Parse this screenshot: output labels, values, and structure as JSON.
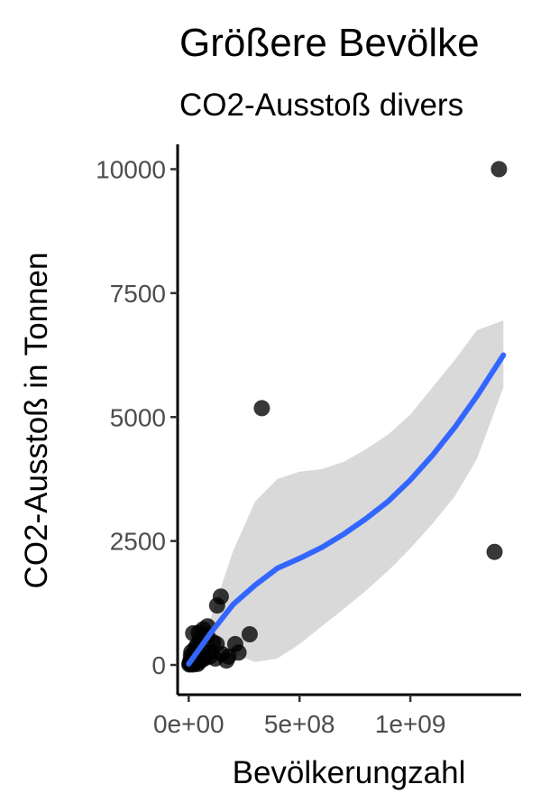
{
  "chart_data": {
    "type": "scatter",
    "title": "Größere Bevölke",
    "subtitle": "CO2-Ausstoß divers",
    "xlabel": "Bevölkerungzahl",
    "ylabel": "CO2-Ausstoß in Tonnen",
    "xlim": [
      -50000000.0,
      1500000000.0
    ],
    "ylim": [
      -600,
      10500
    ],
    "x_ticks": [
      {
        "value": 0,
        "label": "0e+00"
      },
      {
        "value": 500000000,
        "label": "5e+08"
      },
      {
        "value": 1000000000,
        "label": "1e+09"
      }
    ],
    "y_ticks": [
      {
        "value": 0,
        "label": "0"
      },
      {
        "value": 2500,
        "label": "2500"
      },
      {
        "value": 5000,
        "label": "5000"
      },
      {
        "value": 7500,
        "label": "7500"
      },
      {
        "value": 10000,
        "label": "10000"
      }
    ],
    "points": [
      {
        "x": 1400000000,
        "y": 10000
      },
      {
        "x": 1380000000,
        "y": 2280
      },
      {
        "x": 330000000,
        "y": 5180
      },
      {
        "x": 145000000,
        "y": 1380
      },
      {
        "x": 128000000,
        "y": 1200
      },
      {
        "x": 275000000,
        "y": 620
      },
      {
        "x": 210000000,
        "y": 420
      },
      {
        "x": 225000000,
        "y": 250
      },
      {
        "x": 85000000,
        "y": 780
      },
      {
        "x": 65000000,
        "y": 720
      },
      {
        "x": 45000000,
        "y": 650
      },
      {
        "x": 20000000,
        "y": 640
      },
      {
        "x": 83000000,
        "y": 600
      },
      {
        "x": 110000000,
        "y": 460
      },
      {
        "x": 126000000,
        "y": 420
      },
      {
        "x": 50000000,
        "y": 520
      },
      {
        "x": 38000000,
        "y": 400
      },
      {
        "x": 28000000,
        "y": 330
      },
      {
        "x": 60000000,
        "y": 300
      },
      {
        "x": 100000000,
        "y": 260
      },
      {
        "x": 150000000,
        "y": 220
      },
      {
        "x": 180000000,
        "y": 170
      },
      {
        "x": 120000000,
        "y": 130
      },
      {
        "x": 170000000,
        "y": 90
      },
      {
        "x": 30000000,
        "y": 220
      },
      {
        "x": 10000000,
        "y": 180
      },
      {
        "x": 15000000,
        "y": 100
      },
      {
        "x": 5000000,
        "y": 40
      },
      {
        "x": 8000000,
        "y": 20
      },
      {
        "x": 3000000,
        "y": 10
      },
      {
        "x": 70000000,
        "y": 130
      },
      {
        "x": 45000000,
        "y": 60
      },
      {
        "x": 25000000,
        "y": 40
      },
      {
        "x": 12000000,
        "y": 260
      },
      {
        "x": 35000000,
        "y": 150
      },
      {
        "x": 95000000,
        "y": 170
      },
      {
        "x": 55000000,
        "y": 90
      },
      {
        "x": 20000000,
        "y": 10
      },
      {
        "x": 7000000,
        "y": 70
      },
      {
        "x": 40000000,
        "y": 20
      }
    ],
    "smooth_line": {
      "color": "#3366ff",
      "x": [
        0,
        100000000,
        200000000,
        300000000,
        400000000,
        500000000,
        600000000,
        700000000,
        800000000,
        900000000,
        1000000000,
        1100000000,
        1200000000,
        1300000000,
        1420000000
      ],
      "y": [
        20,
        650,
        1220,
        1610,
        1950,
        2150,
        2370,
        2640,
        2950,
        3300,
        3730,
        4230,
        4790,
        5420,
        6250
      ],
      "ci_lower": [
        -60,
        320,
        230,
        60,
        130,
        420,
        780,
        1130,
        1500,
        1900,
        2350,
        2850,
        3400,
        4150,
        5600
      ],
      "ci_upper": [
        100,
        950,
        2300,
        3300,
        3750,
        3900,
        3950,
        4100,
        4350,
        4650,
        5050,
        5600,
        6150,
        6750,
        6950
      ]
    },
    "point_color": "#000000",
    "ci_color": "#d9d9d9",
    "grid": false,
    "legend": "none"
  }
}
